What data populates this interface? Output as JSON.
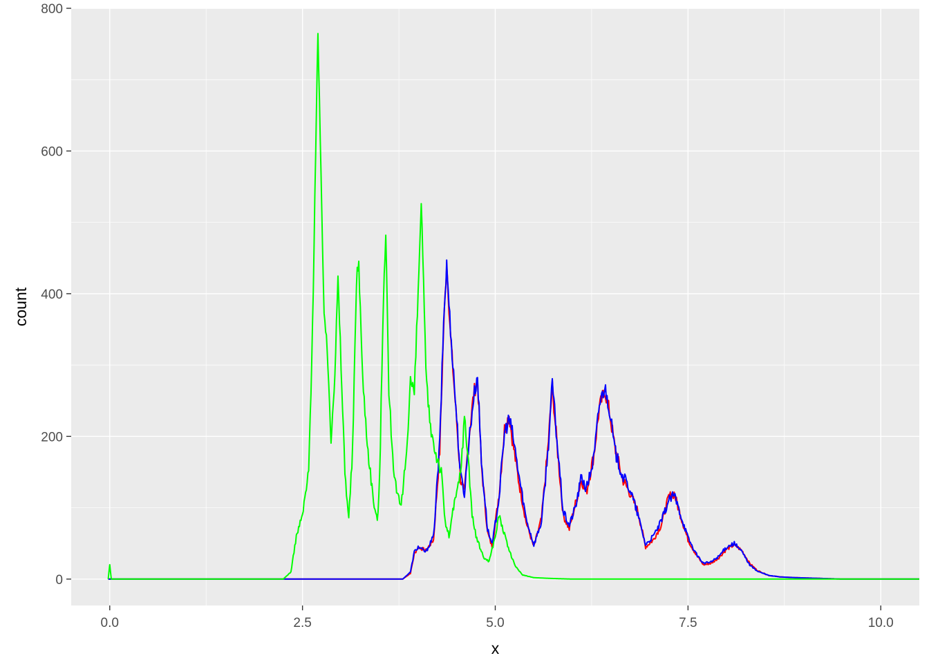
{
  "chart_data": {
    "type": "line",
    "xlabel": "x",
    "ylabel": "count",
    "xlim": [
      -0.5,
      10.5
    ],
    "ylim": [
      -37,
      800
    ],
    "x_ticks": [
      0.0,
      2.5,
      5.0,
      7.5,
      10.0
    ],
    "x_tick_labels": [
      "0.0",
      "2.5",
      "5.0",
      "7.5",
      "10.0"
    ],
    "y_ticks": [
      0,
      200,
      400,
      600,
      800
    ],
    "y_tick_labels": [
      "0",
      "200",
      "400",
      "600",
      "800"
    ],
    "grid": true,
    "panel_background": "#EBEBEB",
    "legend": "none",
    "series": [
      {
        "color": "#FF0000",
        "points": [
          [
            -0.02,
            0
          ],
          [
            3.8,
            0
          ],
          [
            3.9,
            8
          ],
          [
            3.95,
            35
          ],
          [
            4.0,
            45
          ],
          [
            4.1,
            40
          ],
          [
            4.2,
            55
          ],
          [
            4.28,
            180
          ],
          [
            4.33,
            350
          ],
          [
            4.37,
            445
          ],
          [
            4.42,
            340
          ],
          [
            4.5,
            220
          ],
          [
            4.55,
            140
          ],
          [
            4.6,
            120
          ],
          [
            4.65,
            190
          ],
          [
            4.72,
            260
          ],
          [
            4.77,
            280
          ],
          [
            4.82,
            160
          ],
          [
            4.9,
            65
          ],
          [
            4.96,
            45
          ],
          [
            5.05,
            120
          ],
          [
            5.12,
            210
          ],
          [
            5.18,
            230
          ],
          [
            5.23,
            190
          ],
          [
            5.3,
            140
          ],
          [
            5.4,
            80
          ],
          [
            5.5,
            45
          ],
          [
            5.6,
            85
          ],
          [
            5.68,
            180
          ],
          [
            5.74,
            270
          ],
          [
            5.8,
            190
          ],
          [
            5.88,
            90
          ],
          [
            5.96,
            70
          ],
          [
            6.05,
            110
          ],
          [
            6.12,
            140
          ],
          [
            6.18,
            120
          ],
          [
            6.28,
            175
          ],
          [
            6.35,
            240
          ],
          [
            6.42,
            265
          ],
          [
            6.48,
            235
          ],
          [
            6.55,
            185
          ],
          [
            6.65,
            140
          ],
          [
            6.75,
            120
          ],
          [
            6.85,
            95
          ],
          [
            6.95,
            45
          ],
          [
            7.05,
            55
          ],
          [
            7.15,
            75
          ],
          [
            7.25,
            115
          ],
          [
            7.32,
            120
          ],
          [
            7.4,
            90
          ],
          [
            7.5,
            55
          ],
          [
            7.6,
            35
          ],
          [
            7.7,
            20
          ],
          [
            7.8,
            22
          ],
          [
            7.9,
            30
          ],
          [
            8.0,
            42
          ],
          [
            8.1,
            48
          ],
          [
            8.2,
            40
          ],
          [
            8.3,
            22
          ],
          [
            8.4,
            12
          ],
          [
            8.55,
            5
          ],
          [
            8.7,
            3
          ],
          [
            8.9,
            2
          ],
          [
            9.2,
            1
          ],
          [
            9.5,
            0
          ],
          [
            10.5,
            0
          ]
        ]
      },
      {
        "color": "#0000FF",
        "points": [
          [
            -0.02,
            0
          ],
          [
            3.8,
            0
          ],
          [
            3.9,
            10
          ],
          [
            3.95,
            38
          ],
          [
            4.0,
            45
          ],
          [
            4.1,
            38
          ],
          [
            4.2,
            60
          ],
          [
            4.28,
            190
          ],
          [
            4.33,
            360
          ],
          [
            4.37,
            440
          ],
          [
            4.42,
            350
          ],
          [
            4.5,
            225
          ],
          [
            4.55,
            145
          ],
          [
            4.6,
            120
          ],
          [
            4.65,
            185
          ],
          [
            4.72,
            255
          ],
          [
            4.77,
            285
          ],
          [
            4.82,
            165
          ],
          [
            4.9,
            70
          ],
          [
            4.96,
            48
          ],
          [
            5.05,
            115
          ],
          [
            5.12,
            205
          ],
          [
            5.18,
            225
          ],
          [
            5.23,
            200
          ],
          [
            5.3,
            150
          ],
          [
            5.4,
            85
          ],
          [
            5.5,
            48
          ],
          [
            5.6,
            80
          ],
          [
            5.68,
            175
          ],
          [
            5.74,
            275
          ],
          [
            5.8,
            195
          ],
          [
            5.88,
            95
          ],
          [
            5.96,
            75
          ],
          [
            6.05,
            105
          ],
          [
            6.12,
            145
          ],
          [
            6.18,
            125
          ],
          [
            6.28,
            170
          ],
          [
            6.35,
            245
          ],
          [
            6.42,
            270
          ],
          [
            6.48,
            240
          ],
          [
            6.55,
            180
          ],
          [
            6.65,
            145
          ],
          [
            6.75,
            125
          ],
          [
            6.85,
            90
          ],
          [
            6.95,
            48
          ],
          [
            7.05,
            60
          ],
          [
            7.15,
            80
          ],
          [
            7.25,
            110
          ],
          [
            7.32,
            118
          ],
          [
            7.4,
            92
          ],
          [
            7.5,
            58
          ],
          [
            7.6,
            36
          ],
          [
            7.7,
            22
          ],
          [
            7.8,
            24
          ],
          [
            7.9,
            32
          ],
          [
            8.0,
            45
          ],
          [
            8.1,
            50
          ],
          [
            8.2,
            38
          ],
          [
            8.3,
            20
          ],
          [
            8.4,
            11
          ],
          [
            8.55,
            5
          ],
          [
            8.7,
            3
          ],
          [
            8.9,
            2
          ],
          [
            9.2,
            1
          ],
          [
            9.5,
            0
          ],
          [
            10.5,
            0
          ]
        ]
      },
      {
        "color": "#00FF00",
        "points": [
          [
            -0.02,
            0
          ],
          [
            0.0,
            20
          ],
          [
            0.02,
            0
          ],
          [
            2.25,
            0
          ],
          [
            2.35,
            10
          ],
          [
            2.42,
            60
          ],
          [
            2.5,
            90
          ],
          [
            2.58,
            150
          ],
          [
            2.63,
            350
          ],
          [
            2.67,
            600
          ],
          [
            2.7,
            765
          ],
          [
            2.74,
            560
          ],
          [
            2.78,
            380
          ],
          [
            2.83,
            300
          ],
          [
            2.87,
            200
          ],
          [
            2.92,
            290
          ],
          [
            2.96,
            420
          ],
          [
            3.0,
            300
          ],
          [
            3.05,
            150
          ],
          [
            3.1,
            85
          ],
          [
            3.15,
            180
          ],
          [
            3.2,
            420
          ],
          [
            3.23,
            445
          ],
          [
            3.28,
            280
          ],
          [
            3.35,
            180
          ],
          [
            3.42,
            110
          ],
          [
            3.47,
            80
          ],
          [
            3.5,
            140
          ],
          [
            3.55,
            400
          ],
          [
            3.58,
            490
          ],
          [
            3.62,
            260
          ],
          [
            3.68,
            160
          ],
          [
            3.72,
            120
          ],
          [
            3.78,
            100
          ],
          [
            3.85,
            180
          ],
          [
            3.9,
            280
          ],
          [
            3.95,
            260
          ],
          [
            4.0,
            400
          ],
          [
            4.04,
            530
          ],
          [
            4.1,
            290
          ],
          [
            4.15,
            220
          ],
          [
            4.22,
            180
          ],
          [
            4.3,
            150
          ],
          [
            4.35,
            80
          ],
          [
            4.4,
            60
          ],
          [
            4.45,
            95
          ],
          [
            4.5,
            120
          ],
          [
            4.55,
            150
          ],
          [
            4.6,
            225
          ],
          [
            4.65,
            170
          ],
          [
            4.7,
            90
          ],
          [
            4.75,
            60
          ],
          [
            4.85,
            30
          ],
          [
            4.92,
            25
          ],
          [
            5.0,
            60
          ],
          [
            5.05,
            90
          ],
          [
            5.15,
            50
          ],
          [
            5.25,
            20
          ],
          [
            5.35,
            6
          ],
          [
            5.5,
            2
          ],
          [
            5.7,
            1
          ],
          [
            6.0,
            0
          ],
          [
            10.5,
            0
          ]
        ]
      }
    ]
  }
}
